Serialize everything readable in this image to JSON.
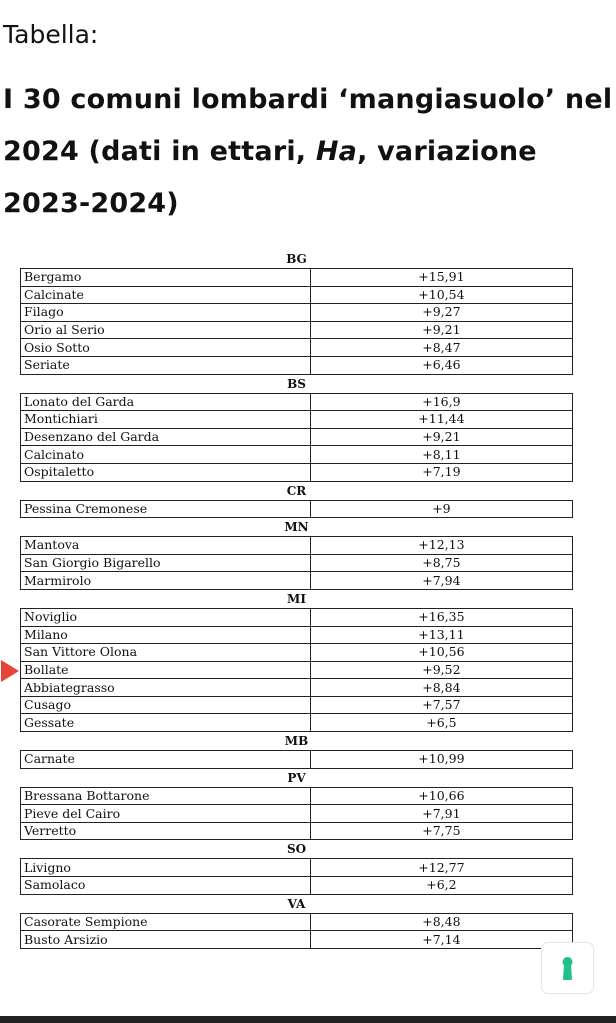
{
  "label": "Tabella:",
  "heading_parts": [
    "I 30 comuni lombardi ‘mangiasuolo’ nel 2024 (dati in ettari, ",
    "Ha",
    ", variazione 2023-2024)"
  ],
  "highlight_color": "#e8443a",
  "highlighted_row": "Bollate",
  "groups": [
    {
      "province": "BG",
      "rows": [
        [
          "Bergamo",
          "+15,91"
        ],
        [
          "Calcinate",
          "+10,54"
        ],
        [
          "Filago",
          "+9,27"
        ],
        [
          "Orio al Serio",
          "+9,21"
        ],
        [
          "Osio Sotto",
          "+8,47"
        ],
        [
          "Seriate",
          "+6,46"
        ]
      ]
    },
    {
      "province": "BS",
      "rows": [
        [
          "Lonato del Garda",
          "+16,9"
        ],
        [
          "Montichiari",
          "+11,44"
        ],
        [
          "Desenzano del Garda",
          "+9,21"
        ],
        [
          "Calcinato",
          "+8,11"
        ],
        [
          "Ospitaletto",
          "+7,19"
        ]
      ]
    },
    {
      "province": "CR",
      "rows": [
        [
          "Pessina Cremonese",
          "+9"
        ]
      ]
    },
    {
      "province": "MN",
      "rows": [
        [
          "Mantova",
          "+12,13"
        ],
        [
          "San Giorgio Bigarello",
          "+8,75"
        ],
        [
          "Marmirolo",
          "+7,94"
        ]
      ]
    },
    {
      "province": "MI",
      "rows": [
        [
          "Noviglio",
          "+16,35"
        ],
        [
          "Milano",
          "+13,11"
        ],
        [
          "San Vittore Olona",
          "+10,56"
        ],
        [
          "Bollate",
          "+9,52"
        ],
        [
          "Abbiategrasso",
          "+8,84"
        ],
        [
          "Cusago",
          "+7,57"
        ],
        [
          "Gessate",
          "+6,5"
        ]
      ]
    },
    {
      "province": "MB",
      "rows": [
        [
          "Carnate",
          "+10,99"
        ]
      ]
    },
    {
      "province": "PV",
      "rows": [
        [
          "Bressana Bottarone",
          "+10,66"
        ],
        [
          "Pieve del Cairo",
          "+7,91"
        ],
        [
          "Verretto",
          "+7,75"
        ]
      ]
    },
    {
      "province": "SO",
      "rows": [
        [
          "Livigno",
          "+12,77"
        ],
        [
          "Samolaco",
          "+6,2"
        ]
      ]
    },
    {
      "province": "VA",
      "rows": [
        [
          "Casorate Sempione",
          "+8,48"
        ],
        [
          "Busto Arsizio",
          "+7,14"
        ]
      ]
    }
  ],
  "floating_button": {
    "icon": "keyhole-icon",
    "color": "#22c08a"
  }
}
